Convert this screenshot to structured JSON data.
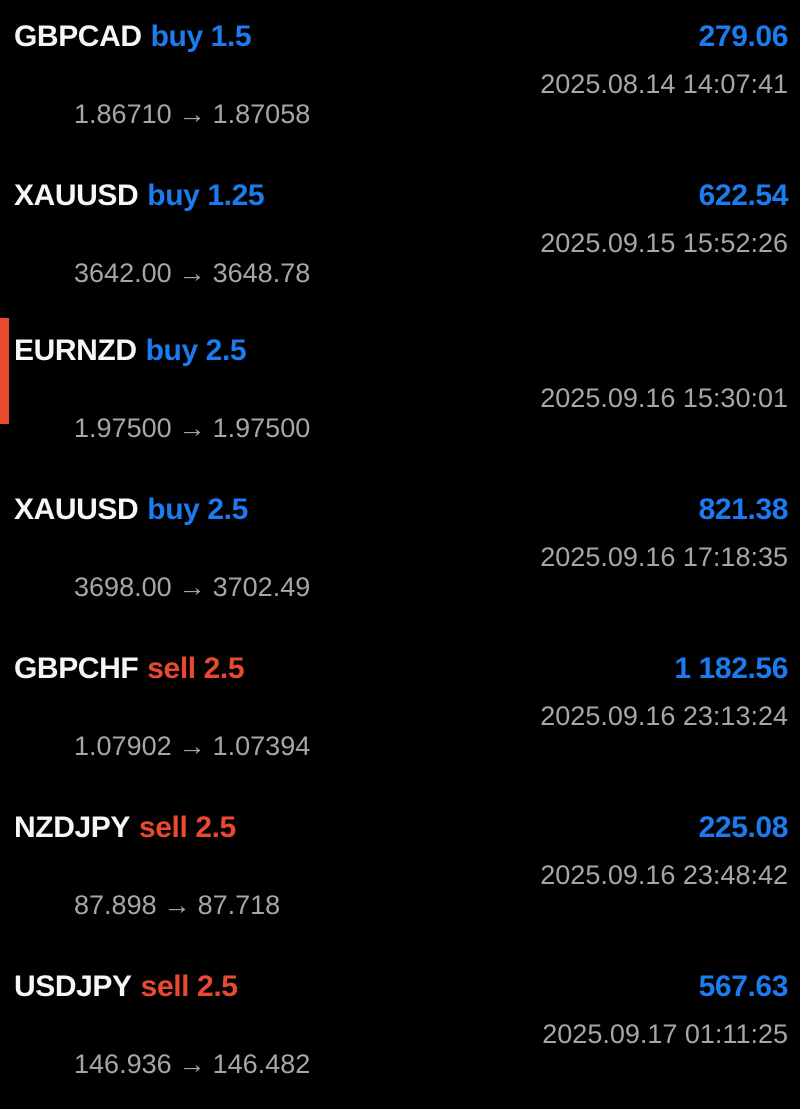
{
  "screen": {
    "name": "trade-history-list"
  },
  "colors": {
    "background": "#000000",
    "symbol_text": "#f5f6f7",
    "buy_blue": "#1c7bee",
    "sell_red": "#e8492f",
    "profit_blue": "#1c7bee",
    "secondary_gray": "#a6a6a8",
    "highlight_bar": "#e8492f"
  },
  "icons": {
    "arrow_right": "→"
  },
  "trades": [
    {
      "symbol": "GBPCAD",
      "direction": "buy",
      "volume": "1.5",
      "open_price": "1.86710",
      "close_price": "1.87058",
      "profit": "279.06",
      "datetime": "2025.08.14 14:07:41",
      "highlighted": false
    },
    {
      "symbol": "XAUUSD",
      "direction": "buy",
      "volume": "1.25",
      "open_price": "3642.00",
      "close_price": "3648.78",
      "profit": "622.54",
      "datetime": "2025.09.15 15:52:26",
      "highlighted": false
    },
    {
      "symbol": "EURNZD",
      "direction": "buy",
      "volume": "2.5",
      "open_price": "1.97500",
      "close_price": "1.97500",
      "profit": "",
      "datetime": "2025.09.16 15:30:01",
      "highlighted": true
    },
    {
      "symbol": "XAUUSD",
      "direction": "buy",
      "volume": "2.5",
      "open_price": "3698.00",
      "close_price": "3702.49",
      "profit": "821.38",
      "datetime": "2025.09.16 17:18:35",
      "highlighted": false
    },
    {
      "symbol": "GBPCHF",
      "direction": "sell",
      "volume": "2.5",
      "open_price": "1.07902",
      "close_price": "1.07394",
      "profit": "1 182.56",
      "datetime": "2025.09.16 23:13:24",
      "highlighted": false
    },
    {
      "symbol": "NZDJPY",
      "direction": "sell",
      "volume": "2.5",
      "open_price": "87.898",
      "close_price": "87.718",
      "profit": "225.08",
      "datetime": "2025.09.16 23:48:42",
      "highlighted": false
    },
    {
      "symbol": "USDJPY",
      "direction": "sell",
      "volume": "2.5",
      "open_price": "146.936",
      "close_price": "146.482",
      "profit": "567.63",
      "datetime": "2025.09.17 01:11:25",
      "highlighted": false
    }
  ]
}
